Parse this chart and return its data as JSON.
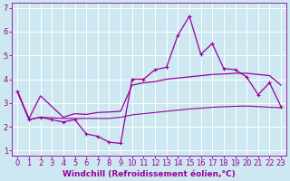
{
  "xlabel": "Windchill (Refroidissement éolien,°C)",
  "bg_color": "#cde8f0",
  "line_color": "#990099",
  "grid_color": "#ffffff",
  "xlim": [
    -0.5,
    23.5
  ],
  "ylim": [
    0.8,
    7.2
  ],
  "yticks": [
    1,
    2,
    3,
    4,
    5,
    6,
    7
  ],
  "xticks": [
    0,
    1,
    2,
    3,
    4,
    5,
    6,
    7,
    8,
    9,
    10,
    11,
    12,
    13,
    14,
    15,
    16,
    17,
    18,
    19,
    20,
    21,
    22,
    23
  ],
  "line1_x": [
    0,
    1,
    2,
    3,
    4,
    5,
    6,
    7,
    8,
    9,
    10,
    11,
    12,
    13,
    14,
    15,
    16,
    17,
    18,
    19,
    20,
    21,
    22,
    23
  ],
  "line1_y": [
    3.5,
    2.3,
    2.4,
    2.3,
    2.2,
    2.3,
    1.7,
    1.6,
    1.35,
    1.3,
    4.0,
    4.0,
    4.4,
    4.5,
    5.85,
    6.65,
    5.05,
    5.5,
    4.45,
    4.4,
    4.1,
    3.35,
    3.85,
    2.85
  ],
  "line2_x": [
    0,
    1,
    2,
    3,
    4,
    5,
    6,
    7,
    8,
    9,
    10,
    11,
    12,
    13,
    14,
    15,
    16,
    17,
    18,
    19,
    20,
    21,
    22,
    23
  ],
  "line2_y": [
    3.45,
    2.35,
    3.3,
    2.85,
    2.4,
    2.55,
    2.52,
    2.6,
    2.62,
    2.65,
    3.75,
    3.85,
    3.9,
    4.0,
    4.05,
    4.1,
    4.15,
    4.2,
    4.22,
    4.25,
    4.25,
    4.2,
    4.15,
    3.75
  ],
  "line3_x": [
    0,
    1,
    2,
    3,
    4,
    5,
    6,
    7,
    8,
    9,
    10,
    11,
    12,
    13,
    14,
    15,
    16,
    17,
    18,
    19,
    20,
    21,
    22,
    23
  ],
  "line3_y": [
    3.45,
    2.3,
    2.4,
    2.38,
    2.35,
    2.35,
    2.35,
    2.35,
    2.35,
    2.4,
    2.5,
    2.55,
    2.6,
    2.65,
    2.7,
    2.75,
    2.78,
    2.82,
    2.84,
    2.86,
    2.87,
    2.85,
    2.82,
    2.8
  ],
  "xlabel_fontsize": 6.5,
  "tick_fontsize": 6
}
